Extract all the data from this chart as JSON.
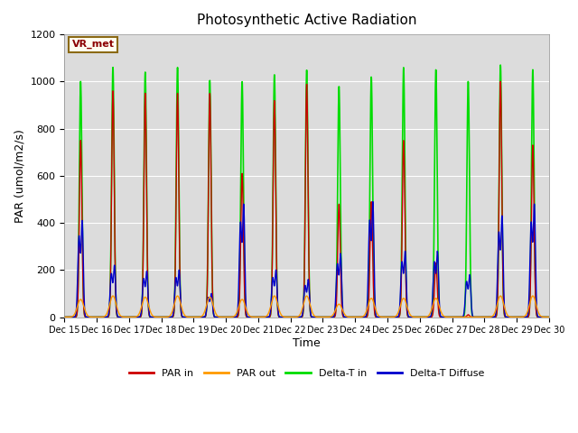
{
  "title": "Photosynthetic Active Radiation",
  "ylabel": "PAR (umol/m2/s)",
  "xlabel": "Time",
  "ylim": [
    0,
    1200
  ],
  "annotation_text": "VR_met",
  "background_color": "#dcdcdc",
  "legend_labels": [
    "PAR in",
    "PAR out",
    "Delta-T in",
    "Delta-T Diffuse"
  ],
  "legend_colors": [
    "#cc0000",
    "#ff9900",
    "#00dd00",
    "#0000cc"
  ],
  "tick_labels": [
    "Dec 15",
    "Dec 16",
    "Dec 17",
    "Dec 18",
    "Dec 19",
    "Dec 20",
    "Dec 21",
    "Dec 22",
    "Dec 23",
    "Dec 24",
    "Dec 25",
    "Dec 26",
    "Dec 27",
    "Dec 28",
    "Dec 29",
    "Dec 30"
  ],
  "par_in_peaks": [
    750,
    960,
    950,
    950,
    950,
    610,
    920,
    990,
    480,
    490,
    750,
    230,
    10,
    1000,
    730
  ],
  "par_out_peaks": [
    75,
    90,
    85,
    90,
    85,
    75,
    90,
    90,
    55,
    80,
    80,
    80,
    0,
    90,
    90
  ],
  "green_peaks": [
    1000,
    1060,
    1040,
    1060,
    1005,
    1000,
    1030,
    1050,
    980,
    1020,
    1060,
    1050,
    1000,
    1070,
    1050
  ],
  "blue_peaks": [
    410,
    220,
    195,
    200,
    100,
    480,
    200,
    160,
    270,
    490,
    280,
    280,
    180,
    430,
    480
  ]
}
